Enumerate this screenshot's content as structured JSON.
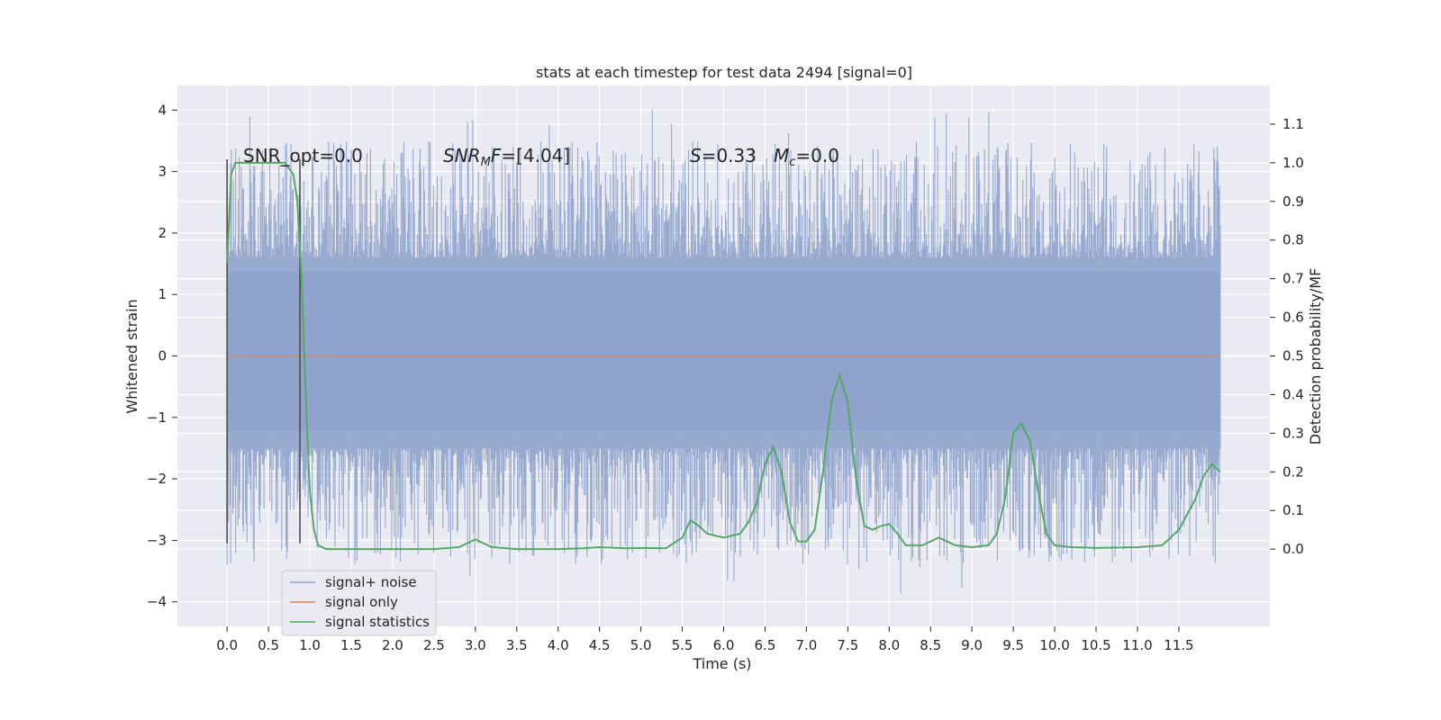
{
  "chart_data": {
    "type": "line",
    "title": "stats at each timestep for test data 2494 [signal=0]",
    "xlabel": "Time (s)",
    "ylabel_left": "Whitened strain",
    "ylabel_right": "Detection probability/MF",
    "xlim": [
      -0.6,
      12.6
    ],
    "ylim_left": [
      -4.4,
      4.4
    ],
    "ylim_right": [
      -0.2,
      1.2
    ],
    "x_ticks": [
      "0.0",
      "0.5",
      "1.0",
      "1.5",
      "2.0",
      "2.5",
      "3.0",
      "3.5",
      "4.0",
      "4.5",
      "5.0",
      "5.5",
      "6.0",
      "6.5",
      "7.0",
      "7.5",
      "8.0",
      "8.5",
      "9.0",
      "9.5",
      "10.0",
      "10.5",
      "11.0",
      "11.5"
    ],
    "y_ticks_left": [
      "4",
      "3",
      "2",
      "1",
      "0",
      "−1",
      "−2",
      "−3",
      "−4"
    ],
    "y_ticks_right": [
      "1.1",
      "1.0",
      "0.9",
      "0.8",
      "0.7",
      "0.6",
      "0.5",
      "0.4",
      "0.3",
      "0.2",
      "0.1",
      "0.0"
    ],
    "grid": true,
    "legend_placement": "lower-left",
    "annotations": {
      "snr_opt": "SNR_opt=0.0",
      "snr_mf_prefix": "SNR",
      "snr_mf_sub": "M",
      "snr_mf_suffix": "F=[4.04]",
      "s_label": "S",
      "s_value": "=0.33",
      "mc_label": "M",
      "mc_sub": "c",
      "mc_value": "=0.0"
    },
    "series": [
      {
        "name": "signal+ noise",
        "color": "#8fa3cc",
        "description_level": "noise",
        "x_range": [
          0.0,
          12.0
        ],
        "max_y": 4.1,
        "min_y": -3.9
      },
      {
        "name": "signal only",
        "color": "#dd8452",
        "x": [
          0.0,
          12.0
        ],
        "y": [
          0.0,
          0.0
        ]
      },
      {
        "name": "signal statistics",
        "color": "#55a868",
        "x": [
          0.0,
          0.05,
          0.1,
          0.2,
          0.3,
          0.5,
          0.7,
          0.8,
          0.85,
          0.9,
          0.95,
          1.0,
          1.05,
          1.1,
          1.2,
          1.5,
          2.0,
          2.5,
          2.8,
          3.0,
          3.2,
          3.5,
          4.0,
          4.3,
          4.5,
          4.8,
          5.0,
          5.3,
          5.5,
          5.6,
          5.7,
          5.8,
          6.0,
          6.2,
          6.3,
          6.4,
          6.5,
          6.6,
          6.7,
          6.8,
          6.9,
          7.0,
          7.1,
          7.2,
          7.3,
          7.4,
          7.5,
          7.6,
          7.7,
          7.8,
          7.9,
          8.0,
          8.1,
          8.2,
          8.4,
          8.6,
          8.8,
          9.0,
          9.2,
          9.3,
          9.4,
          9.5,
          9.6,
          9.7,
          9.8,
          9.9,
          10.0,
          10.2,
          10.5,
          11.0,
          11.3,
          11.5,
          11.7,
          11.8,
          11.9,
          12.0
        ],
        "y": [
          0.74,
          0.97,
          1.0,
          1.0,
          1.0,
          1.0,
          1.0,
          0.97,
          0.9,
          0.7,
          0.4,
          0.15,
          0.05,
          0.01,
          0.0,
          0.0,
          0.0,
          0.0,
          0.005,
          0.025,
          0.005,
          0.0,
          0.0,
          0.002,
          0.005,
          0.002,
          0.003,
          0.002,
          0.03,
          0.075,
          0.06,
          0.04,
          0.03,
          0.04,
          0.07,
          0.12,
          0.22,
          0.265,
          0.2,
          0.07,
          0.02,
          0.02,
          0.05,
          0.2,
          0.38,
          0.45,
          0.38,
          0.18,
          0.06,
          0.05,
          0.06,
          0.065,
          0.04,
          0.01,
          0.01,
          0.03,
          0.01,
          0.005,
          0.01,
          0.04,
          0.13,
          0.3,
          0.325,
          0.28,
          0.15,
          0.04,
          0.01,
          0.005,
          0.003,
          0.005,
          0.01,
          0.05,
          0.13,
          0.19,
          0.22,
          0.2
        ]
      }
    ],
    "vertical_markers_x": [
      0.0,
      0.88
    ],
    "vertical_marker_range_left": [
      -3.05,
      3.2
    ],
    "noise_band_dense_left": [
      -1.7,
      1.9
    ]
  }
}
